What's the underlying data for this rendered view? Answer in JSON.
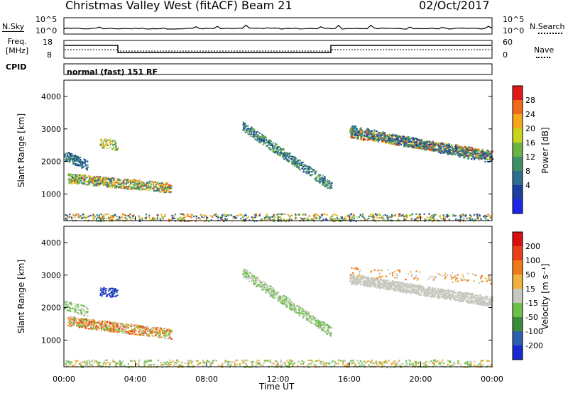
{
  "header": {
    "radar": "Christmas Valley West (fitACF)",
    "beam": "Beam 21",
    "date": "02/Oct/2017"
  },
  "top_panels": {
    "nsky_label": "N.Sky",
    "nsearch_label": "N.Search",
    "noise_ticks_left": [
      "10^5",
      "10^0"
    ],
    "noise_ticks_right": [
      "10^5",
      "10^0"
    ],
    "freq_label_line1": "Freq.",
    "freq_label_line2": "[MHz]",
    "freq_ticks": [
      "18",
      "8"
    ],
    "nave_label": "Nave",
    "nave_ticks": [
      "60",
      "0"
    ],
    "cpid_label": "CPID",
    "cpid_value": "normal (fast) 151 RF"
  },
  "chart_data": [
    {
      "type": "heatmap",
      "name": "power-panel",
      "ylabel": "Slant Range [km]",
      "yticks": [
        "4000",
        "3000",
        "2000",
        "1000"
      ],
      "ylim": [
        180,
        4500
      ],
      "colorbar_label": "Power [dB]",
      "colorbar_ticks": [
        "28",
        "24",
        "20",
        "16",
        "12",
        "8",
        "4"
      ],
      "colors": [
        "#1a28e6",
        "#1c3fa0",
        "#2e6f8e",
        "#3e8e68",
        "#6cb244",
        "#c8d420",
        "#f5a71e",
        "#f06a1a",
        "#e01a1a"
      ]
    },
    {
      "type": "heatmap",
      "name": "velocity-panel",
      "ylabel": "Slant Range [km]",
      "yticks": [
        "4000",
        "3000",
        "2000",
        "1000"
      ],
      "ylim": [
        180,
        4500
      ],
      "colorbar_label": "Velocity [m s⁻¹]",
      "colorbar_ticks": [
        "200",
        "100",
        "50",
        "15",
        "-15",
        "-50",
        "-100",
        "-200"
      ],
      "colors": [
        "#1a28d0",
        "#2d5fb0",
        "#3a8a3a",
        "#6cc04a",
        "#c8c8c0",
        "#f0b23c",
        "#f07a1a",
        "#e8401a",
        "#d81010"
      ]
    }
  ],
  "xaxis": {
    "label": "Time UT",
    "ticks": [
      "00:00",
      "04:00",
      "08:00",
      "12:00",
      "16:00",
      "20:00",
      "00:00"
    ]
  }
}
